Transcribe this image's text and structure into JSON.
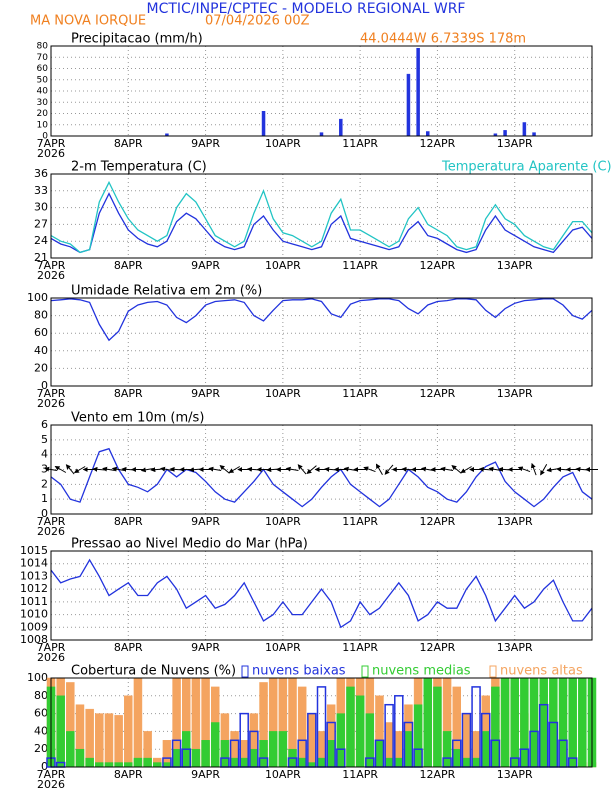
{
  "header": {
    "title": "MCTIC/INPE/CPTEC - MODELO REGIONAL WRF",
    "location": "MA NOVA IORQUE",
    "run": "07/04/2026 00Z",
    "coords": "44.0444W 6.7339S 178m"
  },
  "chart_data": [
    {
      "type": "bar",
      "title": "Precipitacao (mm/h)",
      "year": "2026",
      "bar_width": 3,
      "x": [
        0,
        3,
        6,
        9,
        12,
        15,
        18,
        21,
        24,
        27,
        30,
        33,
        36,
        39,
        42,
        45,
        48,
        51,
        54,
        57,
        60,
        63,
        66,
        69,
        72,
        75,
        78,
        81,
        84,
        87,
        90,
        93,
        96,
        99,
        102,
        105,
        108,
        111,
        114,
        117,
        120,
        123,
        126,
        129,
        132,
        135,
        138,
        141,
        144,
        147,
        150,
        153,
        156,
        159,
        162,
        165,
        168
      ],
      "xlim": [
        0,
        168
      ],
      "xticks": [
        {
          "value": 0,
          "label": "7APR"
        },
        {
          "value": 24,
          "label": "8APR"
        },
        {
          "value": 48,
          "label": "9APR"
        },
        {
          "value": 72,
          "label": "10APR"
        },
        {
          "value": 96,
          "label": "11APR"
        },
        {
          "value": 120,
          "label": "12APR"
        },
        {
          "value": 144,
          "label": "13APR"
        }
      ],
      "ylim": [
        0,
        80
      ],
      "yticks": [
        0,
        10,
        20,
        30,
        40,
        50,
        60,
        70,
        80
      ],
      "grid": true,
      "series": [
        {
          "color": "#2233dd",
          "values": [
            0,
            0,
            0,
            0,
            0,
            0,
            0,
            0,
            0,
            0,
            0,
            0,
            2,
            0,
            0,
            0,
            0,
            0,
            0,
            0,
            0,
            0,
            22,
            0,
            0,
            0,
            0,
            0,
            3,
            0,
            15,
            0,
            0,
            0,
            0,
            0,
            0,
            55,
            78,
            4,
            0,
            0,
            0,
            0,
            0,
            0,
            2,
            5,
            0,
            12,
            3,
            0,
            0,
            0,
            0,
            0,
            0
          ]
        }
      ]
    },
    {
      "type": "line",
      "title": "2-m Temperatura (C)",
      "year": "2026",
      "x": [
        0,
        3,
        6,
        9,
        12,
        15,
        18,
        21,
        24,
        27,
        30,
        33,
        36,
        39,
        42,
        45,
        48,
        51,
        54,
        57,
        60,
        63,
        66,
        69,
        72,
        75,
        78,
        81,
        84,
        87,
        90,
        93,
        96,
        99,
        102,
        105,
        108,
        111,
        114,
        117,
        120,
        123,
        126,
        129,
        132,
        135,
        138,
        141,
        144,
        147,
        150,
        153,
        156,
        159,
        162,
        165,
        168
      ],
      "xlim": [
        0,
        168
      ],
      "xticks": [
        {
          "value": 0,
          "label": "7APR"
        },
        {
          "value": 24,
          "label": "8APR"
        },
        {
          "value": 48,
          "label": "9APR"
        },
        {
          "value": 72,
          "label": "10APR"
        },
        {
          "value": 96,
          "label": "11APR"
        },
        {
          "value": 120,
          "label": "12APR"
        },
        {
          "value": 144,
          "label": "13APR"
        }
      ],
      "ylim": [
        21,
        36
      ],
      "yticks": [
        21,
        24,
        27,
        30,
        33,
        36
      ],
      "grid": true,
      "series": [
        {
          "color": "#2233dd",
          "values": [
            24.5,
            23.5,
            23,
            22,
            22.5,
            29,
            32.5,
            29,
            26,
            24.5,
            23.5,
            23,
            24,
            27.5,
            29,
            28,
            26,
            24,
            23,
            22.5,
            23,
            27,
            28.5,
            26,
            24,
            23.5,
            23,
            22.5,
            23,
            27,
            28.5,
            24.5,
            24,
            23.5,
            23,
            22.5,
            23,
            26,
            27.5,
            25,
            24.5,
            23.5,
            22.5,
            22,
            22.5,
            26,
            28.5,
            26,
            25,
            24,
            23,
            22.5,
            22,
            24,
            26,
            26.5,
            24.5
          ]
        },
        {
          "name": "Temperatura Aparente (C)",
          "color": "#22c4c4",
          "values": [
            25,
            24,
            23.5,
            22,
            22.5,
            31,
            34.5,
            31,
            28,
            26,
            25,
            24,
            25,
            30,
            32.5,
            31,
            28,
            25,
            24,
            23,
            24,
            29,
            33,
            28,
            25.5,
            25,
            24,
            23,
            24,
            29,
            31.5,
            26,
            26,
            25,
            24,
            23,
            24,
            28,
            30,
            27,
            26,
            25,
            23,
            22.5,
            23,
            28,
            30.5,
            28,
            27,
            25,
            24,
            23,
            22.5,
            25,
            27.5,
            27.5,
            25.5
          ]
        }
      ]
    },
    {
      "type": "line",
      "title": "Umidade Relativa em 2m (%)",
      "year": "2026",
      "x": [
        0,
        3,
        6,
        9,
        12,
        15,
        18,
        21,
        24,
        27,
        30,
        33,
        36,
        39,
        42,
        45,
        48,
        51,
        54,
        57,
        60,
        63,
        66,
        69,
        72,
        75,
        78,
        81,
        84,
        87,
        90,
        93,
        96,
        99,
        102,
        105,
        108,
        111,
        114,
        117,
        120,
        123,
        126,
        129,
        132,
        135,
        138,
        141,
        144,
        147,
        150,
        153,
        156,
        159,
        162,
        165,
        168
      ],
      "xlim": [
        0,
        168
      ],
      "xticks": [
        {
          "value": 0,
          "label": "7APR"
        },
        {
          "value": 24,
          "label": "8APR"
        },
        {
          "value": 48,
          "label": "9APR"
        },
        {
          "value": 72,
          "label": "10APR"
        },
        {
          "value": 96,
          "label": "11APR"
        },
        {
          "value": 120,
          "label": "12APR"
        },
        {
          "value": 144,
          "label": "13APR"
        }
      ],
      "ylim": [
        0,
        100
      ],
      "yticks": [
        0,
        20,
        40,
        60,
        80,
        100
      ],
      "grid": true,
      "series": [
        {
          "color": "#2233dd",
          "values": [
            97,
            98,
            99,
            98,
            95,
            70,
            52,
            62,
            85,
            92,
            95,
            96,
            92,
            78,
            72,
            80,
            92,
            96,
            97,
            98,
            95,
            80,
            74,
            86,
            97,
            98,
            98,
            99,
            96,
            82,
            78,
            93,
            97,
            98,
            99,
            99,
            97,
            88,
            82,
            92,
            96,
            97,
            99,
            99,
            98,
            86,
            78,
            88,
            94,
            97,
            98,
            99,
            99,
            92,
            80,
            76,
            86
          ]
        }
      ]
    },
    {
      "type": "line",
      "title": "Vento em 10m (m/s)",
      "year": "2026",
      "x": [
        0,
        3,
        6,
        9,
        12,
        15,
        18,
        21,
        24,
        27,
        30,
        33,
        36,
        39,
        42,
        45,
        48,
        51,
        54,
        57,
        60,
        63,
        66,
        69,
        72,
        75,
        78,
        81,
        84,
        87,
        90,
        93,
        96,
        99,
        102,
        105,
        108,
        111,
        114,
        117,
        120,
        123,
        126,
        129,
        132,
        135,
        138,
        141,
        144,
        147,
        150,
        153,
        156,
        159,
        162,
        165,
        168
      ],
      "xlim": [
        0,
        168
      ],
      "xticks": [
        {
          "value": 0,
          "label": "7APR"
        },
        {
          "value": 24,
          "label": "8APR"
        },
        {
          "value": 48,
          "label": "9APR"
        },
        {
          "value": 72,
          "label": "10APR"
        },
        {
          "value": 96,
          "label": "11APR"
        },
        {
          "value": 120,
          "label": "12APR"
        },
        {
          "value": 144,
          "label": "13APR"
        }
      ],
      "ylim": [
        0,
        6
      ],
      "yticks": [
        0,
        1,
        2,
        3,
        4,
        5,
        6
      ],
      "grid": true,
      "series": [
        {
          "color": "#2233dd",
          "values": [
            2.5,
            2,
            1,
            0.8,
            2.5,
            4.2,
            4.4,
            3,
            2,
            1.8,
            1.5,
            2,
            3,
            2.5,
            3,
            2.8,
            2.2,
            1.5,
            1,
            0.8,
            1.5,
            2.2,
            3,
            2,
            1.5,
            1,
            0.5,
            1,
            1.8,
            2.5,
            3,
            2,
            1.5,
            1,
            0.5,
            1,
            2,
            3,
            2.5,
            1.8,
            1.5,
            1,
            0.8,
            1.5,
            2.5,
            3.2,
            3.5,
            2.2,
            1.5,
            1,
            0.5,
            1,
            1.8,
            2.5,
            2.8,
            1.5,
            1
          ]
        }
      ],
      "directions": [
        100,
        120,
        140,
        60,
        90,
        95,
        100,
        100,
        95,
        90,
        80,
        85,
        100,
        95,
        90,
        85,
        90,
        100,
        130,
        60,
        90,
        95,
        90,
        85,
        90,
        100,
        140,
        50,
        90,
        95,
        90,
        100,
        90,
        110,
        150,
        40,
        90,
        95,
        90,
        100,
        90,
        100,
        130,
        60,
        90,
        95,
        100,
        95,
        90,
        110,
        160,
        30,
        80,
        95,
        90,
        95,
        90
      ]
    },
    {
      "type": "line",
      "title": "Pressao ao Nivel Medio do Mar (hPa)",
      "year": "2026",
      "x": [
        0,
        3,
        6,
        9,
        12,
        15,
        18,
        21,
        24,
        27,
        30,
        33,
        36,
        39,
        42,
        45,
        48,
        51,
        54,
        57,
        60,
        63,
        66,
        69,
        72,
        75,
        78,
        81,
        84,
        87,
        90,
        93,
        96,
        99,
        102,
        105,
        108,
        111,
        114,
        117,
        120,
        123,
        126,
        129,
        132,
        135,
        138,
        141,
        144,
        147,
        150,
        153,
        156,
        159,
        162,
        165,
        168
      ],
      "xlim": [
        0,
        168
      ],
      "xticks": [
        {
          "value": 0,
          "label": "7APR"
        },
        {
          "value": 24,
          "label": "8APR"
        },
        {
          "value": 48,
          "label": "9APR"
        },
        {
          "value": 72,
          "label": "10APR"
        },
        {
          "value": 96,
          "label": "11APR"
        },
        {
          "value": 120,
          "label": "12APR"
        },
        {
          "value": 144,
          "label": "13APR"
        }
      ],
      "ylim": [
        1008,
        1015
      ],
      "yticks": [
        1008,
        1009,
        1010,
        1011,
        1012,
        1013,
        1014,
        1015
      ],
      "grid": true,
      "series": [
        {
          "color": "#2233dd",
          "values": [
            1013.5,
            1012.5,
            1012.8,
            1013,
            1014.3,
            1013,
            1011.5,
            1012,
            1012.5,
            1011.5,
            1011.5,
            1012.5,
            1013,
            1012,
            1010.5,
            1011,
            1011.5,
            1010.5,
            1010.8,
            1011.5,
            1012.5,
            1011,
            1009.5,
            1010,
            1011,
            1010,
            1010,
            1011,
            1012,
            1011,
            1009,
            1009.5,
            1011,
            1010,
            1010.5,
            1011.5,
            1012.5,
            1011.5,
            1009.5,
            1010,
            1011,
            1010.5,
            1010.5,
            1012,
            1013,
            1011.5,
            1009.5,
            1010.5,
            1011.5,
            1010.5,
            1011,
            1012,
            1012.7,
            1011,
            1009.5,
            1009.5,
            1010.5
          ]
        }
      ]
    },
    {
      "type": "bar",
      "title": "Cobertura de Nuvens (%)",
      "year": "2026",
      "bar_width": 8,
      "x": [
        0,
        3,
        6,
        9,
        12,
        15,
        18,
        21,
        24,
        27,
        30,
        33,
        36,
        39,
        42,
        45,
        48,
        51,
        54,
        57,
        60,
        63,
        66,
        69,
        72,
        75,
        78,
        81,
        84,
        87,
        90,
        93,
        96,
        99,
        102,
        105,
        108,
        111,
        114,
        117,
        120,
        123,
        126,
        129,
        132,
        135,
        138,
        141,
        144,
        147,
        150,
        153,
        156,
        159,
        162,
        165,
        168
      ],
      "xlim": [
        0,
        168
      ],
      "xticks": [
        {
          "value": 0,
          "label": "7APR"
        },
        {
          "value": 24,
          "label": "8APR"
        },
        {
          "value": 48,
          "label": "9APR"
        },
        {
          "value": 72,
          "label": "10APR"
        },
        {
          "value": 96,
          "label": "11APR"
        },
        {
          "value": 120,
          "label": "12APR"
        },
        {
          "value": 144,
          "label": "13APR"
        }
      ],
      "ylim": [
        0,
        100
      ],
      "yticks": [
        0,
        20,
        40,
        60,
        80,
        100
      ],
      "grid": true,
      "series": [
        {
          "name": "nuvens altas",
          "color": "#f4a460",
          "style": "fill",
          "values": [
            100,
            100,
            95,
            70,
            65,
            60,
            60,
            58,
            80,
            100,
            40,
            10,
            30,
            100,
            100,
            100,
            100,
            90,
            60,
            40,
            30,
            60,
            95,
            100,
            100,
            100,
            90,
            60,
            40,
            70,
            100,
            100,
            100,
            100,
            80,
            50,
            40,
            70,
            100,
            100,
            100,
            100,
            90,
            60,
            40,
            80,
            100,
            100,
            90,
            60,
            20,
            10,
            10,
            5,
            5,
            5,
            5
          ]
        },
        {
          "name": "nuvens medias",
          "color": "#33cc33",
          "style": "fill",
          "values": [
            90,
            80,
            40,
            20,
            10,
            5,
            5,
            5,
            5,
            10,
            10,
            5,
            5,
            20,
            40,
            20,
            30,
            50,
            30,
            10,
            10,
            20,
            30,
            40,
            40,
            20,
            10,
            5,
            10,
            30,
            60,
            90,
            80,
            60,
            30,
            10,
            10,
            40,
            70,
            100,
            90,
            40,
            20,
            10,
            10,
            40,
            90,
            100,
            100,
            100,
            100,
            100,
            100,
            100,
            100,
            100,
            100
          ]
        },
        {
          "name": "nuvens baixas",
          "color": "#2233dd",
          "style": "outline",
          "values": [
            10,
            5,
            0,
            0,
            0,
            0,
            0,
            0,
            0,
            0,
            0,
            0,
            10,
            30,
            20,
            0,
            0,
            0,
            10,
            30,
            60,
            40,
            10,
            0,
            0,
            10,
            30,
            60,
            90,
            50,
            20,
            0,
            0,
            10,
            30,
            70,
            80,
            50,
            20,
            0,
            0,
            10,
            30,
            60,
            90,
            60,
            30,
            0,
            10,
            20,
            40,
            70,
            50,
            30,
            10,
            0,
            0
          ]
        }
      ]
    }
  ]
}
